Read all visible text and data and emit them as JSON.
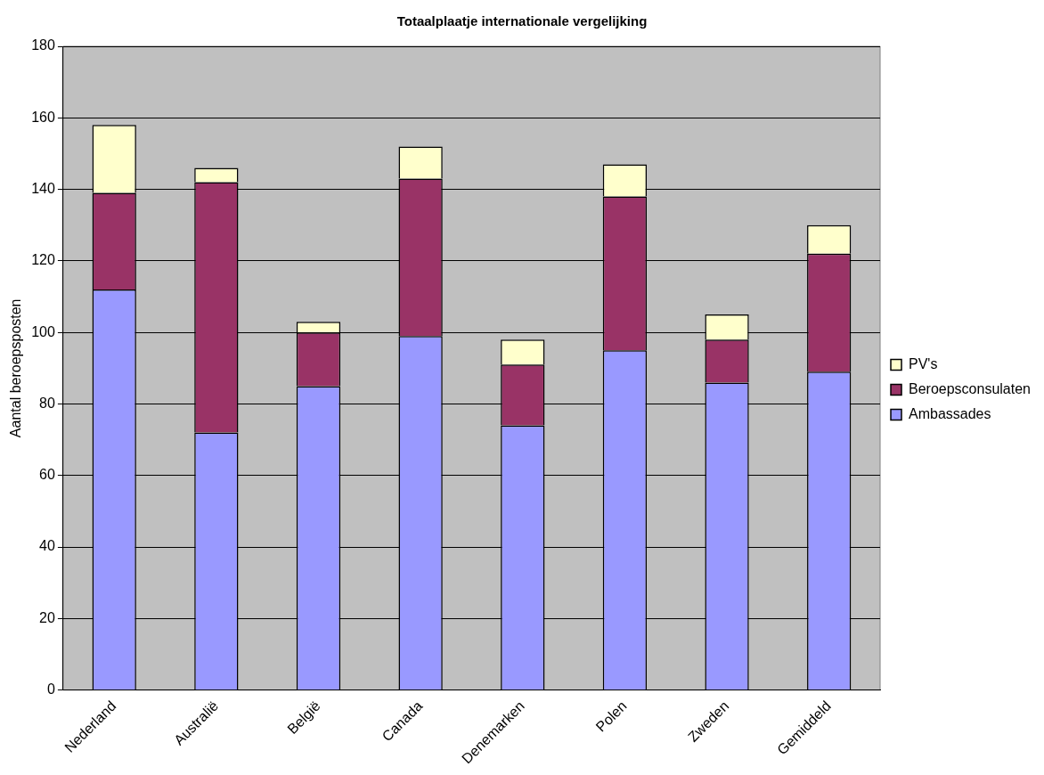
{
  "chart_data": {
    "type": "bar",
    "title": "Totaalplaatje internationale vergelijking",
    "ylabel": "Aantal beroepsposten",
    "categories": [
      "Nederland",
      "Australië",
      "België",
      "Canada",
      "Denemarken",
      "Polen",
      "Zweden",
      "Gemiddeld"
    ],
    "stacked": true,
    "series": [
      {
        "name": "Ambassades",
        "color": "#9999ff",
        "values": [
          112,
          72,
          85,
          99,
          74,
          95,
          86,
          89
        ]
      },
      {
        "name": "Beroepsconsulaten",
        "color": "#993366",
        "values": [
          27,
          70,
          15,
          44,
          17,
          43,
          12,
          33
        ]
      },
      {
        "name": "PV's",
        "color": "#ffffcc",
        "values": [
          19,
          4,
          3,
          9,
          7,
          9,
          7,
          8
        ]
      }
    ],
    "ylim": [
      0,
      180
    ],
    "yticks": [
      0,
      20,
      40,
      60,
      80,
      100,
      120,
      140,
      160,
      180
    ],
    "grid": "y",
    "legend": "right"
  }
}
